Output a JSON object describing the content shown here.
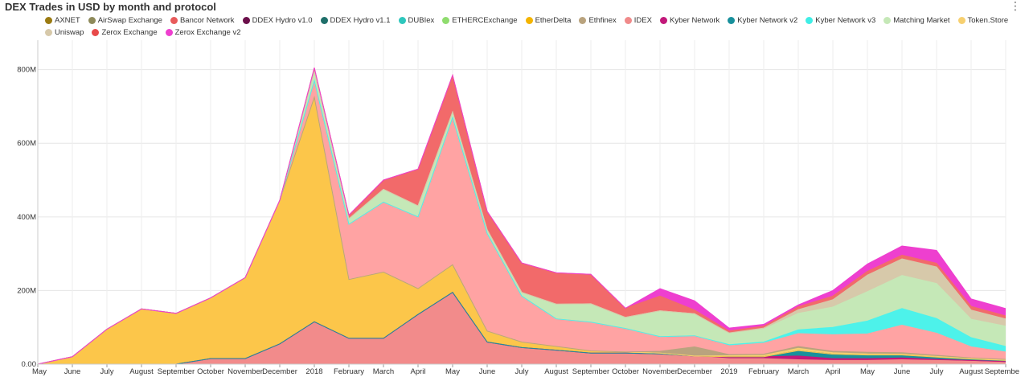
{
  "header": {
    "title": "DEX Trades in USD by month and protocol",
    "menu_icon": "⋮"
  },
  "legend": [
    {
      "name": "AXNET",
      "color": "#9b7b12"
    },
    {
      "name": "AirSwap Exchange",
      "color": "#8e8a5a"
    },
    {
      "name": "Bancor Network",
      "color": "#e85b5b"
    },
    {
      "name": "DDEX Hydro v1.0",
      "color": "#6b0f4a"
    },
    {
      "name": "DDEX Hydro v1.1",
      "color": "#1f6f6a"
    },
    {
      "name": "DUBIex",
      "color": "#2ec7bd"
    },
    {
      "name": "ETHERCExchange",
      "color": "#8fdc6e"
    },
    {
      "name": "EtherDelta",
      "color": "#f4b400"
    },
    {
      "name": "Ethfinex",
      "color": "#b9a37e"
    },
    {
      "name": "IDEX",
      "color": "#f08a8a"
    },
    {
      "name": "Kyber Network",
      "color": "#c2187a"
    },
    {
      "name": "Kyber Network v2",
      "color": "#18909c"
    },
    {
      "name": "Kyber Network v3",
      "color": "#3feee6"
    },
    {
      "name": "Matching Market",
      "color": "#c5e8b7"
    },
    {
      "name": "Token.Store",
      "color": "#f7d070"
    },
    {
      "name": "Uniswap",
      "color": "#d7c9aa"
    },
    {
      "name": "Zerox Exchange",
      "color": "#e84a4a"
    },
    {
      "name": "Zerox Exchange v2",
      "color": "#ee3fcf"
    }
  ],
  "chart_data": {
    "type": "area",
    "stacked": true,
    "title": "DEX Trades in USD by month and protocol",
    "y_unit": "USD",
    "ylim": [
      0,
      880
    ],
    "y_ticks": [
      "0.00",
      "200M",
      "400M",
      "600M",
      "800M"
    ],
    "y_tick_values": [
      0,
      200,
      400,
      600,
      800
    ],
    "x": [
      "May",
      "June",
      "July",
      "August",
      "September",
      "October",
      "November",
      "December",
      "2018",
      "February",
      "March",
      "April",
      "May",
      "June",
      "July",
      "August",
      "September",
      "October",
      "November",
      "December",
      "2019",
      "February",
      "March",
      "April",
      "May",
      "June",
      "July",
      "August",
      "Septembe"
    ],
    "series": [
      {
        "name": "Bancor Network",
        "color": "#f28b8b",
        "values": [
          0,
          0,
          0,
          0,
          0,
          15,
          15,
          55,
          115,
          70,
          70,
          135,
          195,
          60,
          45,
          38,
          30,
          30,
          28,
          22,
          15,
          15,
          12,
          10,
          10,
          12,
          10,
          8,
          5
        ]
      },
      {
        "name": "Kyber Network",
        "color": "#c2187a",
        "values": [
          0,
          0,
          0,
          0,
          0,
          0,
          0,
          0,
          0,
          0,
          0,
          0,
          0,
          0,
          0,
          0,
          0,
          0,
          0,
          0,
          5,
          5,
          10,
          5,
          5,
          5,
          3,
          2,
          2
        ]
      },
      {
        "name": "Kyber Network v2",
        "color": "#18909c",
        "values": [
          0,
          0,
          0,
          0,
          0,
          0,
          0,
          0,
          0,
          0,
          0,
          0,
          0,
          0,
          0,
          0,
          0,
          0,
          0,
          0,
          0,
          0,
          15,
          12,
          10,
          8,
          6,
          4,
          3
        ]
      },
      {
        "name": "EtherDelta",
        "color": "#fcc64a",
        "values": [
          0,
          20,
          95,
          150,
          138,
          165,
          220,
          390,
          610,
          160,
          180,
          70,
          75,
          30,
          15,
          10,
          6,
          3,
          2,
          0,
          0,
          0,
          0,
          0,
          0,
          0,
          0,
          0,
          0
        ]
      },
      {
        "name": "Token.Store",
        "color": "#f7d070",
        "values": [
          0,
          0,
          0,
          0,
          0,
          0,
          0,
          0,
          0,
          0,
          0,
          0,
          0,
          0,
          0,
          0,
          0,
          0,
          0,
          0,
          3,
          4,
          6,
          4,
          3,
          2,
          2,
          1,
          1
        ]
      },
      {
        "name": "Ethfinex",
        "color": "#b9a37e",
        "values": [
          0,
          0,
          0,
          0,
          0,
          0,
          0,
          0,
          0,
          0,
          0,
          0,
          0,
          0,
          0,
          0,
          0,
          0,
          5,
          25,
          3,
          3,
          5,
          4,
          4,
          4,
          3,
          2,
          2
        ]
      },
      {
        "name": "IDEX",
        "color": "#ffa3a3",
        "values": [
          0,
          0,
          0,
          0,
          0,
          0,
          0,
          0,
          45,
          150,
          190,
          195,
          400,
          265,
          125,
          75,
          78,
          64,
          40,
          30,
          24,
          30,
          35,
          45,
          50,
          75,
          60,
          30,
          20
        ]
      },
      {
        "name": "Kyber Network v3",
        "color": "#4df2ea",
        "values": [
          0,
          0,
          0,
          0,
          0,
          0,
          0,
          0,
          0,
          0,
          0,
          0,
          0,
          0,
          0,
          0,
          0,
          0,
          0,
          0,
          3,
          3,
          10,
          20,
          35,
          45,
          40,
          25,
          15
        ]
      },
      {
        "name": "Matching Market",
        "color": "#c5e8b7",
        "values": [
          0,
          0,
          0,
          0,
          0,
          0,
          0,
          0,
          25,
          15,
          35,
          30,
          15,
          10,
          10,
          40,
          50,
          30,
          70,
          60,
          30,
          35,
          45,
          55,
          80,
          90,
          95,
          50,
          55
        ]
      },
      {
        "name": "Uniswap",
        "color": "#d7c9aa",
        "values": [
          0,
          0,
          0,
          0,
          0,
          0,
          0,
          0,
          0,
          0,
          0,
          0,
          0,
          0,
          0,
          0,
          0,
          0,
          0,
          0,
          2,
          3,
          10,
          20,
          45,
          45,
          45,
          25,
          20
        ]
      },
      {
        "name": "Zerox Exchange",
        "color": "#f26a6a",
        "values": [
          0,
          0,
          0,
          0,
          0,
          0,
          0,
          0,
          10,
          10,
          25,
          100,
          100,
          50,
          80,
          85,
          80,
          25,
          40,
          10,
          5,
          5,
          8,
          10,
          10,
          10,
          10,
          10,
          8
        ]
      },
      {
        "name": "Zerox Exchange v2",
        "color": "#ee3fcf",
        "values": [
          0,
          0,
          0,
          0,
          0,
          0,
          0,
          0,
          0,
          0,
          0,
          0,
          0,
          0,
          0,
          0,
          0,
          0,
          20,
          25,
          8,
          5,
          5,
          15,
          20,
          25,
          35,
          20,
          20
        ]
      }
    ]
  }
}
